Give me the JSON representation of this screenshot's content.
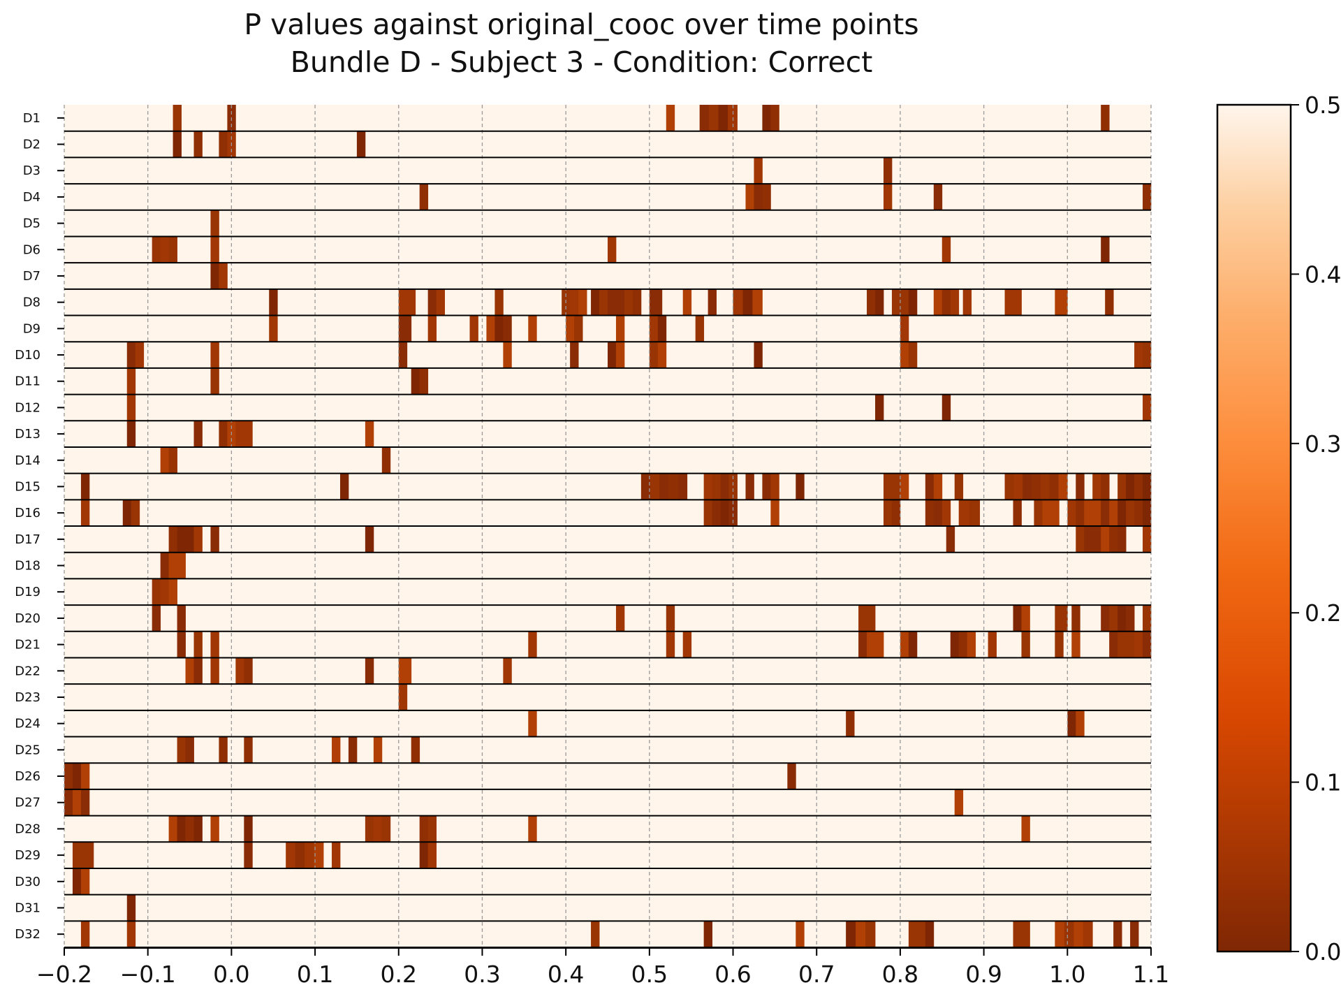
{
  "chart_data": {
    "type": "heatmap",
    "title_line1": "P values against original_cooc over time points",
    "title_line2": "Bundle D - Subject 3 - Condition: Correct",
    "xlim": [
      -0.2,
      1.1
    ],
    "xticks": [
      -0.2,
      -0.1,
      0.0,
      0.1,
      0.2,
      0.3,
      0.4,
      0.5,
      0.6,
      0.7,
      0.8,
      0.9,
      1.0,
      1.1
    ],
    "xtick_labels": [
      "−0.2",
      "−0.1",
      "0.0",
      "0.1",
      "0.2",
      "0.3",
      "0.4",
      "0.5",
      "0.6",
      "0.7",
      "0.8",
      "0.9",
      "1.0",
      "1.1"
    ],
    "grid_vertical_dashed": true,
    "colormap": "Oranges_r",
    "colors": {
      "low": "#7f2704",
      "high": "#fff5eb"
    },
    "clim": [
      0.0,
      0.5
    ],
    "colorbar_ticks": [
      0.0,
      0.1,
      0.2,
      0.3,
      0.4,
      0.5
    ],
    "colorbar_tick_labels": [
      "0.0",
      "0.1",
      "0.2",
      "0.3",
      "0.4",
      "0.5"
    ],
    "background_value": 0.5,
    "rows": [
      {
        "label": "D1",
        "significant": [
          [
            -0.07,
            -0.06
          ],
          [
            -0.005,
            0.005
          ],
          [
            0.52,
            0.53
          ],
          [
            0.56,
            0.605
          ],
          [
            0.635,
            0.655
          ],
          [
            1.04,
            1.05
          ]
        ]
      },
      {
        "label": "D2",
        "significant": [
          [
            -0.07,
            -0.06
          ],
          [
            -0.045,
            -0.035
          ],
          [
            -0.015,
            0.005
          ],
          [
            0.15,
            0.16
          ]
        ]
      },
      {
        "label": "D3",
        "significant": [
          [
            0.625,
            0.635
          ],
          [
            0.78,
            0.79
          ]
        ]
      },
      {
        "label": "D4",
        "significant": [
          [
            0.225,
            0.235
          ],
          [
            0.615,
            0.645
          ],
          [
            0.78,
            0.79
          ],
          [
            0.84,
            0.85
          ],
          [
            1.09,
            1.1
          ]
        ]
      },
      {
        "label": "D5",
        "significant": [
          [
            -0.025,
            -0.015
          ]
        ]
      },
      {
        "label": "D6",
        "significant": [
          [
            -0.095,
            -0.065
          ],
          [
            -0.025,
            -0.015
          ],
          [
            0.45,
            0.46
          ],
          [
            0.85,
            0.86
          ],
          [
            1.04,
            1.05
          ]
        ]
      },
      {
        "label": "D7",
        "significant": [
          [
            -0.025,
            -0.005
          ]
        ]
      },
      {
        "label": "D8",
        "significant": [
          [
            0.045,
            0.055
          ],
          [
            0.2,
            0.22
          ],
          [
            0.235,
            0.255
          ],
          [
            0.315,
            0.325
          ],
          [
            0.395,
            0.425
          ],
          [
            0.43,
            0.49
          ],
          [
            0.5,
            0.515
          ],
          [
            0.54,
            0.55
          ],
          [
            0.57,
            0.58
          ],
          [
            0.6,
            0.635
          ],
          [
            0.76,
            0.78
          ],
          [
            0.79,
            0.82
          ],
          [
            0.84,
            0.87
          ],
          [
            0.875,
            0.885
          ],
          [
            0.925,
            0.945
          ],
          [
            0.985,
            1.0
          ],
          [
            1.045,
            1.055
          ]
        ]
      },
      {
        "label": "D9",
        "significant": [
          [
            0.045,
            0.055
          ],
          [
            0.2,
            0.215
          ],
          [
            0.235,
            0.245
          ],
          [
            0.285,
            0.295
          ],
          [
            0.305,
            0.335
          ],
          [
            0.355,
            0.365
          ],
          [
            0.4,
            0.42
          ],
          [
            0.46,
            0.47
          ],
          [
            0.5,
            0.52
          ],
          [
            0.555,
            0.565
          ],
          [
            0.8,
            0.81
          ]
        ]
      },
      {
        "label": "D10",
        "significant": [
          [
            -0.125,
            -0.105
          ],
          [
            -0.025,
            -0.015
          ],
          [
            0.2,
            0.21
          ],
          [
            0.325,
            0.335
          ],
          [
            0.405,
            0.415
          ],
          [
            0.45,
            0.47
          ],
          [
            0.5,
            0.52
          ],
          [
            0.625,
            0.635
          ],
          [
            0.8,
            0.82
          ],
          [
            1.08,
            1.1
          ]
        ]
      },
      {
        "label": "D11",
        "significant": [
          [
            -0.125,
            -0.115
          ],
          [
            -0.025,
            -0.015
          ],
          [
            0.215,
            0.235
          ]
        ]
      },
      {
        "label": "D12",
        "significant": [
          [
            -0.125,
            -0.115
          ],
          [
            0.77,
            0.78
          ],
          [
            0.85,
            0.86
          ],
          [
            1.09,
            1.1
          ]
        ]
      },
      {
        "label": "D13",
        "significant": [
          [
            -0.125,
            -0.115
          ],
          [
            -0.045,
            -0.035
          ],
          [
            -0.015,
            0.025
          ],
          [
            0.16,
            0.17
          ]
        ]
      },
      {
        "label": "D14",
        "significant": [
          [
            -0.085,
            -0.065
          ],
          [
            0.18,
            0.19
          ]
        ]
      },
      {
        "label": "D15",
        "significant": [
          [
            -0.18,
            -0.17
          ],
          [
            0.13,
            0.14
          ],
          [
            0.49,
            0.545
          ],
          [
            0.565,
            0.605
          ],
          [
            0.615,
            0.625
          ],
          [
            0.635,
            0.655
          ],
          [
            0.675,
            0.685
          ],
          [
            0.78,
            0.81
          ],
          [
            0.83,
            0.85
          ],
          [
            0.865,
            0.875
          ],
          [
            0.925,
            1.0
          ],
          [
            1.01,
            1.02
          ],
          [
            1.03,
            1.05
          ],
          [
            1.06,
            1.1
          ]
        ]
      },
      {
        "label": "D16",
        "significant": [
          [
            -0.18,
            -0.17
          ],
          [
            -0.13,
            -0.11
          ],
          [
            0.565,
            0.605
          ],
          [
            0.645,
            0.655
          ],
          [
            0.78,
            0.8
          ],
          [
            0.83,
            0.86
          ],
          [
            0.87,
            0.895
          ],
          [
            0.935,
            0.945
          ],
          [
            0.96,
            0.99
          ],
          [
            1.0,
            1.1
          ]
        ]
      },
      {
        "label": "D17",
        "significant": [
          [
            -0.075,
            -0.035
          ],
          [
            -0.025,
            -0.015
          ],
          [
            0.16,
            0.17
          ],
          [
            0.855,
            0.865
          ],
          [
            1.01,
            1.07
          ],
          [
            1.09,
            1.1
          ]
        ]
      },
      {
        "label": "D18",
        "significant": [
          [
            -0.085,
            -0.055
          ]
        ]
      },
      {
        "label": "D19",
        "significant": [
          [
            -0.095,
            -0.065
          ]
        ]
      },
      {
        "label": "D20",
        "significant": [
          [
            -0.095,
            -0.085
          ],
          [
            -0.065,
            -0.055
          ],
          [
            0.46,
            0.47
          ],
          [
            0.52,
            0.53
          ],
          [
            0.75,
            0.77
          ],
          [
            0.935,
            0.955
          ],
          [
            0.985,
            1.0
          ],
          [
            1.005,
            1.015
          ],
          [
            1.04,
            1.08
          ],
          [
            1.09,
            1.1
          ]
        ]
      },
      {
        "label": "D21",
        "significant": [
          [
            -0.065,
            -0.055
          ],
          [
            -0.045,
            -0.035
          ],
          [
            -0.025,
            -0.015
          ],
          [
            0.355,
            0.365
          ],
          [
            0.52,
            0.53
          ],
          [
            0.54,
            0.55
          ],
          [
            0.75,
            0.78
          ],
          [
            0.8,
            0.82
          ],
          [
            0.86,
            0.89
          ],
          [
            0.905,
            0.915
          ],
          [
            0.945,
            0.955
          ],
          [
            0.985,
            0.995
          ],
          [
            1.005,
            1.015
          ],
          [
            1.05,
            1.1
          ]
        ]
      },
      {
        "label": "D22",
        "significant": [
          [
            -0.055,
            -0.035
          ],
          [
            -0.025,
            -0.015
          ],
          [
            0.005,
            0.025
          ],
          [
            0.16,
            0.17
          ],
          [
            0.2,
            0.215
          ],
          [
            0.325,
            0.335
          ]
        ]
      },
      {
        "label": "D23",
        "significant": [
          [
            0.2,
            0.21
          ]
        ]
      },
      {
        "label": "D24",
        "significant": [
          [
            0.355,
            0.365
          ],
          [
            0.735,
            0.745
          ],
          [
            1.0,
            1.02
          ]
        ]
      },
      {
        "label": "D25",
        "significant": [
          [
            -0.065,
            -0.045
          ],
          [
            -0.015,
            -0.005
          ],
          [
            0.015,
            0.025
          ],
          [
            0.12,
            0.13
          ],
          [
            0.14,
            0.15
          ],
          [
            0.17,
            0.18
          ],
          [
            0.215,
            0.225
          ]
        ]
      },
      {
        "label": "D26",
        "significant": [
          [
            -0.2,
            -0.17
          ],
          [
            0.665,
            0.675
          ]
        ]
      },
      {
        "label": "D27",
        "significant": [
          [
            -0.2,
            -0.17
          ],
          [
            0.865,
            0.875
          ]
        ]
      },
      {
        "label": "D28",
        "significant": [
          [
            -0.075,
            -0.035
          ],
          [
            -0.025,
            -0.015
          ],
          [
            0.015,
            0.025
          ],
          [
            0.16,
            0.19
          ],
          [
            0.225,
            0.245
          ],
          [
            0.355,
            0.365
          ],
          [
            0.945,
            0.955
          ]
        ]
      },
      {
        "label": "D29",
        "significant": [
          [
            -0.19,
            -0.165
          ],
          [
            0.015,
            0.025
          ],
          [
            0.065,
            0.11
          ],
          [
            0.12,
            0.13
          ],
          [
            0.225,
            0.245
          ]
        ]
      },
      {
        "label": "D30",
        "significant": [
          [
            -0.19,
            -0.17
          ]
        ]
      },
      {
        "label": "D31",
        "significant": [
          [
            -0.125,
            -0.115
          ]
        ]
      },
      {
        "label": "D32",
        "significant": [
          [
            -0.18,
            -0.17
          ],
          [
            -0.125,
            -0.115
          ],
          [
            0.43,
            0.44
          ],
          [
            0.565,
            0.575
          ],
          [
            0.675,
            0.685
          ],
          [
            0.735,
            0.77
          ],
          [
            0.81,
            0.84
          ],
          [
            0.935,
            0.955
          ],
          [
            0.985,
            1.03
          ],
          [
            1.055,
            1.065
          ],
          [
            1.075,
            1.085
          ]
        ]
      }
    ]
  }
}
